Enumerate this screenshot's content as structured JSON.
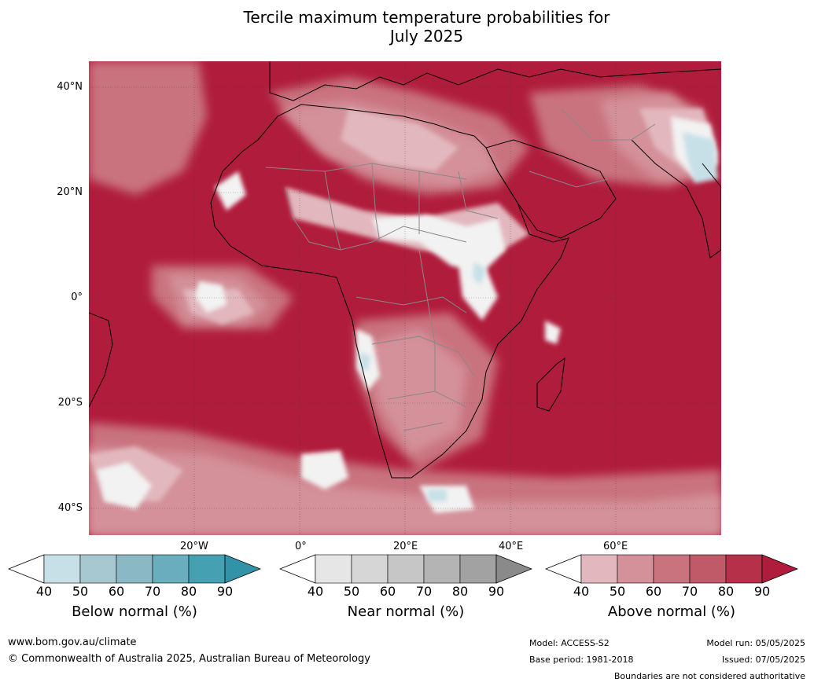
{
  "title_line1": "Tercile maximum temperature probabilities for",
  "title_line2": "July 2025",
  "lat_labels": [
    "40°N",
    "20°N",
    "0°",
    "20°S",
    "40°S"
  ],
  "lon_labels": [
    "20°W",
    "0°",
    "20°E",
    "40°E",
    "60°E"
  ],
  "legends": [
    {
      "title": "Below normal (%)",
      "ticks": [
        "40",
        "50",
        "60",
        "70",
        "80",
        "90"
      ],
      "colors": [
        "#c7e0e7",
        "#a7c8d1",
        "#8ab8c5",
        "#6aaebd",
        "#45a0b2",
        "#3293a8"
      ]
    },
    {
      "title": "Near normal (%)",
      "ticks": [
        "40",
        "50",
        "60",
        "70",
        "80",
        "90"
      ],
      "colors": [
        "#e6e6e6",
        "#d6d6d6",
        "#c6c6c6",
        "#b4b4b4",
        "#a2a2a2",
        "#8a8a8a"
      ]
    },
    {
      "title": "Above normal (%)",
      "ticks": [
        "40",
        "50",
        "60",
        "70",
        "80",
        "90"
      ],
      "colors": [
        "#e2b7bd",
        "#d4919a",
        "#c9737f",
        "#c05a69",
        "#b6304a",
        "#b01c3c"
      ]
    }
  ],
  "footer": {
    "website": "www.bom.gov.au/climate",
    "copyright": "© Commonwealth of Australia 2025, Australian Bureau of Meteorology",
    "model": "Model: ACCESS-S2",
    "base_period": "Base period: 1981-2018",
    "model_run": "Model run: 05/05/2025",
    "issued": "Issued: 07/05/2025",
    "boundaries": "Boundaries are not considered authoritative"
  },
  "map_colors": {
    "ocean": "#b01c3c",
    "above_80": "#c03a52",
    "above_70": "#c9737f",
    "above_60": "#d4919a",
    "above_50": "#e2b7bd",
    "near": "#f2f2f2",
    "near_dark": "#a2a2a2",
    "below": "#c7e0e7",
    "below_mid": "#6aaebd",
    "coast": "#000000",
    "border": "#888888",
    "grid": "#3a3a3a"
  }
}
